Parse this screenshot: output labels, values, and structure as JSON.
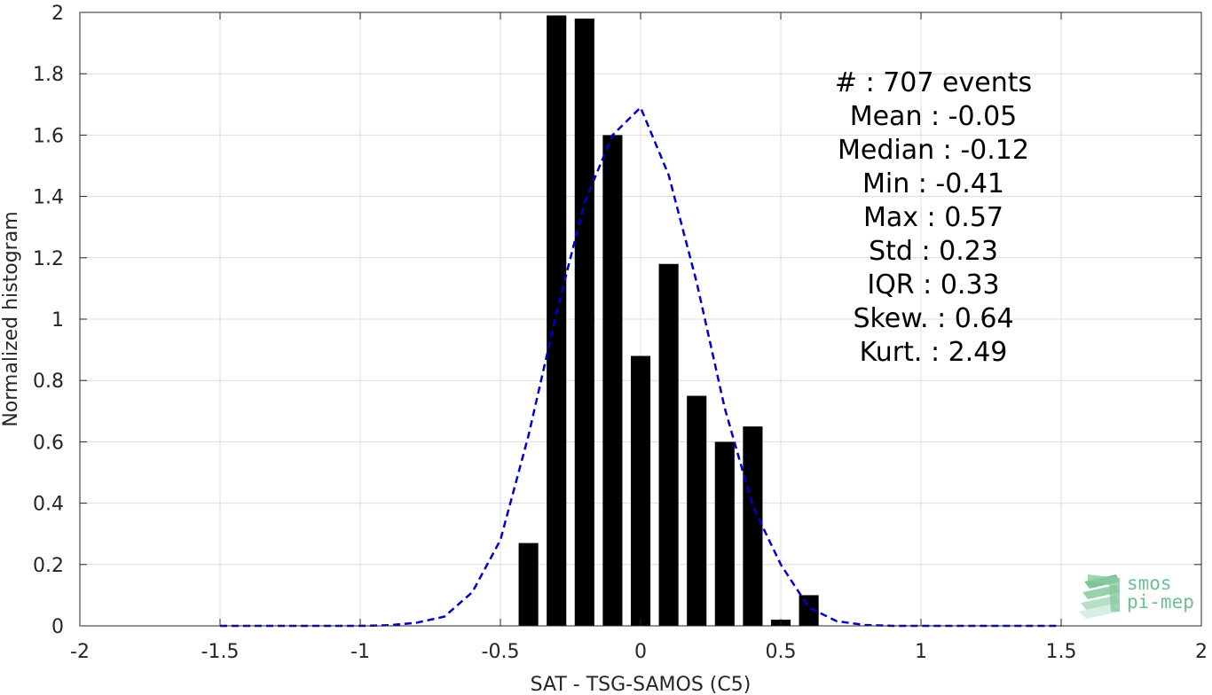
{
  "chart_data": {
    "type": "bar",
    "title": "",
    "xlabel": "SAT - TSG-SAMOS (C5)",
    "ylabel": "Normalized histogram",
    "xlim": [
      -2,
      2
    ],
    "ylim": [
      0,
      2
    ],
    "grid": true,
    "xticks": [
      -2,
      -1.5,
      -1,
      -0.5,
      0,
      0.5,
      1,
      1.5,
      2
    ],
    "xtick_labels": [
      "-2",
      "-1.5",
      "-1",
      "-0.5",
      "0",
      "0.5",
      "1",
      "1.5",
      "2"
    ],
    "yticks": [
      0,
      0.2,
      0.4,
      0.6,
      0.8,
      1,
      1.2,
      1.4,
      1.6,
      1.8,
      2
    ],
    "ytick_labels": [
      "0",
      "0.2",
      "0.4",
      "0.6",
      "0.8",
      "1",
      "1.2",
      "1.4",
      "1.6",
      "1.8",
      "2"
    ],
    "bar_width": 0.07,
    "bars": {
      "x": [
        -0.4,
        -0.3,
        -0.2,
        -0.1,
        0.0,
        0.1,
        0.2,
        0.3,
        0.4,
        0.5,
        0.6
      ],
      "values": [
        0.27,
        1.99,
        1.98,
        1.6,
        0.88,
        1.18,
        0.75,
        0.6,
        0.65,
        0.02,
        0.1
      ],
      "color": "#000000"
    },
    "fit_line": {
      "style": "dashed",
      "color": "#0000cc",
      "x": [
        -1.5,
        -1.4,
        -1.3,
        -1.2,
        -1.1,
        -1.0,
        -0.9,
        -0.8,
        -0.7,
        -0.6,
        -0.5,
        -0.4,
        -0.3,
        -0.2,
        -0.1,
        0.0,
        0.1,
        0.2,
        0.3,
        0.4,
        0.5,
        0.6,
        0.7,
        0.8,
        0.9,
        1.0,
        1.1,
        1.2,
        1.3,
        1.4,
        1.5
      ],
      "y": [
        0,
        0,
        0,
        0,
        0,
        0,
        0.002,
        0.01,
        0.03,
        0.11,
        0.28,
        0.62,
        1.02,
        1.38,
        1.6,
        1.69,
        1.47,
        1.12,
        0.71,
        0.39,
        0.2,
        0.06,
        0.015,
        0.003,
        0,
        0,
        0,
        0,
        0,
        0,
        0
      ]
    },
    "stats": [
      "#  : 707 events",
      "Mean : -0.05",
      "Median : -0.12",
      "Min : -0.41",
      "Max : 0.57",
      "Std : 0.23",
      "IQR : 0.33",
      "Skew. : 0.64",
      "Kurt. : 2.49"
    ]
  },
  "logo": {
    "line1": "smos",
    "line2": "pi-mep",
    "color": "#6fbf8f"
  }
}
